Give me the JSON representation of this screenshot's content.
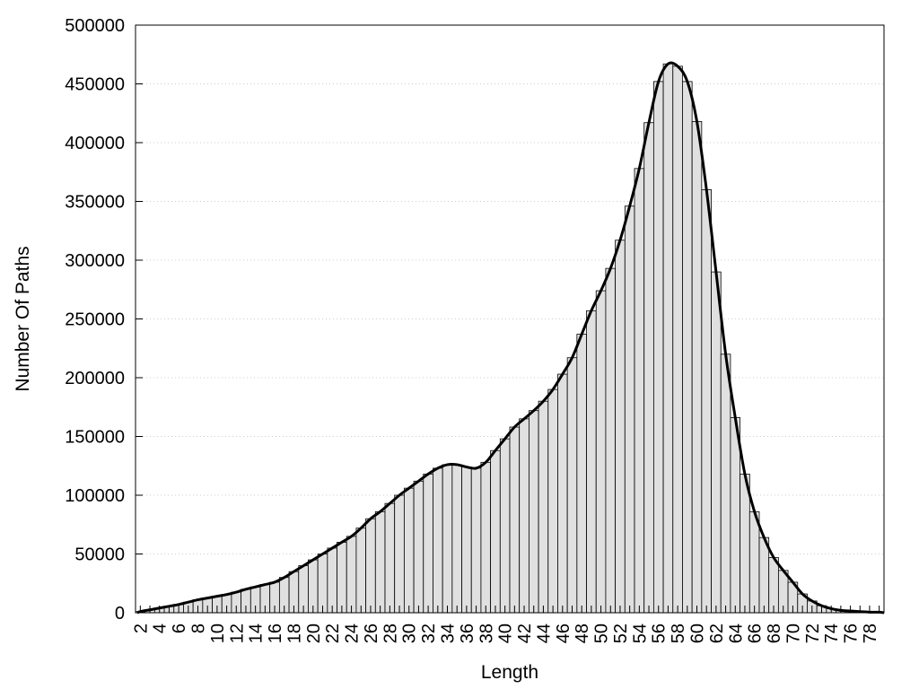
{
  "chart_data": {
    "type": "bar",
    "title": "",
    "xlabel": "Length",
    "ylabel": "Number Of Paths",
    "ylim": [
      0,
      500000
    ],
    "yticks": [
      0,
      50000,
      100000,
      150000,
      200000,
      250000,
      300000,
      350000,
      400000,
      450000,
      500000
    ],
    "grid": "horizontal-dotted",
    "legend": "none",
    "colors": {
      "bar_fill": "#e0e0e0",
      "bar_stroke": "#000000",
      "curve": "#000000",
      "grid": "#cccccc"
    },
    "categories": [
      2,
      3,
      4,
      5,
      6,
      7,
      8,
      9,
      10,
      11,
      12,
      13,
      14,
      15,
      16,
      17,
      18,
      19,
      20,
      21,
      22,
      23,
      24,
      25,
      26,
      27,
      28,
      29,
      30,
      31,
      32,
      33,
      34,
      35,
      36,
      37,
      38,
      39,
      40,
      41,
      42,
      43,
      44,
      45,
      46,
      47,
      48,
      49,
      50,
      51,
      52,
      53,
      54,
      55,
      56,
      57,
      58,
      59,
      60,
      61,
      62,
      63,
      64,
      65,
      66,
      67,
      68,
      69,
      70,
      71,
      72,
      73,
      74,
      75,
      76,
      77,
      78,
      79
    ],
    "xtick_labels": [
      "2",
      "4",
      "6",
      "8",
      "10",
      "12",
      "14",
      "16",
      "18",
      "20",
      "22",
      "24",
      "26",
      "28",
      "30",
      "32",
      "34",
      "36",
      "38",
      "40",
      "42",
      "44",
      "46",
      "48",
      "50",
      "52",
      "54",
      "56",
      "58",
      "60",
      "62",
      "64",
      "66",
      "68",
      "70",
      "72",
      "74",
      "76",
      "78"
    ],
    "values": [
      1000,
      2500,
      4000,
      5500,
      7000,
      9000,
      11000,
      12500,
      14000,
      15500,
      17500,
      20000,
      22000,
      24000,
      26000,
      30000,
      35000,
      40000,
      45000,
      50000,
      55000,
      60000,
      65000,
      72000,
      80000,
      86000,
      93000,
      100000,
      106000,
      112000,
      118000,
      123000,
      126000,
      126000,
      124000,
      123000,
      128000,
      138000,
      148000,
      158000,
      165000,
      172000,
      180000,
      190000,
      203000,
      217000,
      237000,
      257000,
      274000,
      293000,
      317000,
      346000,
      378000,
      417000,
      452000,
      467000,
      465000,
      452000,
      418000,
      360000,
      290000,
      220000,
      166000,
      118000,
      86000,
      64000,
      47000,
      36000,
      26000,
      16000,
      10000,
      6000,
      3500,
      2000,
      1500,
      1000,
      500,
      500
    ]
  }
}
